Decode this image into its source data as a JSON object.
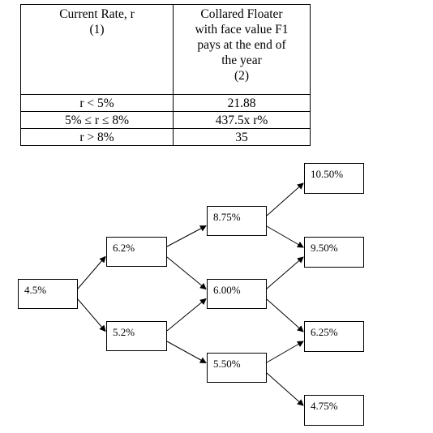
{
  "table": {
    "header": {
      "col1": [
        "Current Rate, r",
        "(1)"
      ],
      "col2": [
        "Collared Floater",
        "with face value F1",
        "pays at the end of",
        "the year",
        "(2)"
      ]
    },
    "rows": [
      {
        "rate": "r < 5%",
        "payoff": "21.88"
      },
      {
        "rate": "5%  ≤ r ≤ 8%",
        "payoff": "437.5x r%"
      },
      {
        "rate": "r > 8%",
        "payoff": "35"
      }
    ]
  },
  "tree": {
    "nodes": [
      {
        "id": "n0",
        "label": "4.5%"
      },
      {
        "id": "n1u",
        "label": "6.2%"
      },
      {
        "id": "n1d",
        "label": "5.2%"
      },
      {
        "id": "n2u",
        "label": "8.75%"
      },
      {
        "id": "n2m",
        "label": "6.00%"
      },
      {
        "id": "n2d",
        "label": "5.50%"
      },
      {
        "id": "n3a",
        "label": "10.50%"
      },
      {
        "id": "n3b",
        "label": "9.50%"
      },
      {
        "id": "n3c",
        "label": "6.25%"
      },
      {
        "id": "n3d",
        "label": "4.75%"
      }
    ],
    "edges": [
      [
        "n0",
        "n1u"
      ],
      [
        "n0",
        "n1d"
      ],
      [
        "n1u",
        "n2u"
      ],
      [
        "n1u",
        "n2m"
      ],
      [
        "n1d",
        "n2m"
      ],
      [
        "n1d",
        "n2d"
      ],
      [
        "n2u",
        "n3a"
      ],
      [
        "n2u",
        "n3b"
      ],
      [
        "n2m",
        "n3b"
      ],
      [
        "n2m",
        "n3c"
      ],
      [
        "n2d",
        "n3c"
      ],
      [
        "n2d",
        "n3d"
      ]
    ]
  }
}
